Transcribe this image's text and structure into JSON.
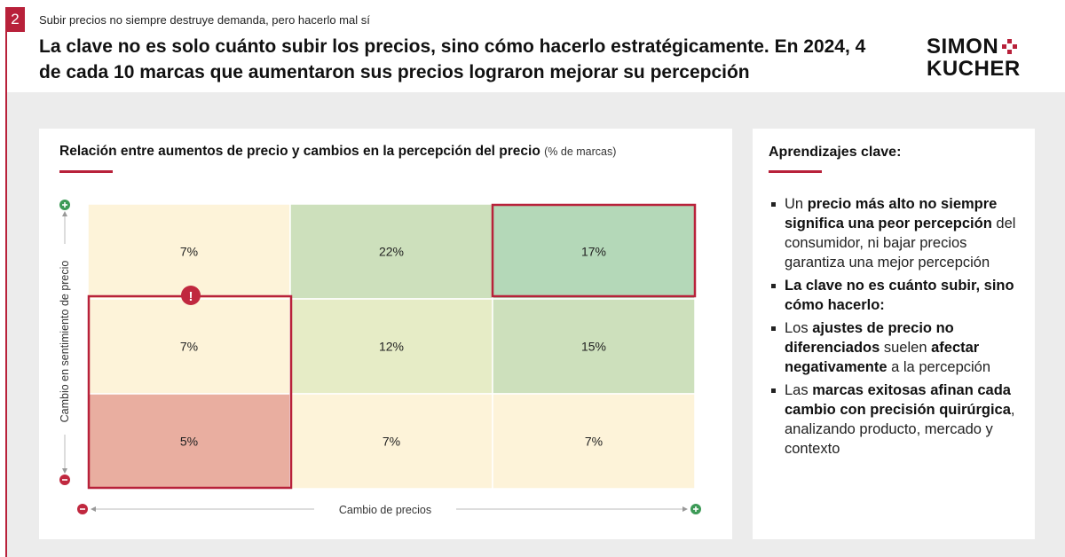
{
  "header": {
    "slide_number": "2",
    "subtitle": "Subir precios no siempre destruye demanda, pero hacerlo mal sí",
    "headline": "La clave no es solo cuánto subir los precios, sino cómo hacerlo estratégicamente. En 2024, 4 de cada 10 marcas que aumentaron sus precios lograron mejorar su percepción",
    "logo_line1": "SIMON",
    "logo_line2": "KUCHER"
  },
  "colors": {
    "accent": "#b8213a",
    "cell_light": "#fdf3d9",
    "cell_pale_green": "#e6ecc6",
    "cell_green": "#cde0bc",
    "cell_strong_green": "#b4d8b8",
    "cell_red": "#e9aea0",
    "plus_green": "#3d9a57",
    "minus_red": "#c0283f"
  },
  "chart_data": {
    "type": "heatmap",
    "title": "Relación entre aumentos de precio y cambios en la percepción del precio",
    "title_unit": "(% de marcas)",
    "xlabel": "Cambio de precios",
    "ylabel": "Cambio en sentimiento de precio",
    "x_axis_low_icon": "minus-icon",
    "x_axis_high_icon": "plus-icon",
    "y_axis_low_icon": "minus-icon",
    "y_axis_high_icon": "plus-icon",
    "warning_icon": "exclamation-icon",
    "rows": [
      {
        "cells": [
          {
            "label": "7%",
            "value": 7,
            "fill": "cell_light",
            "highlight": false
          },
          {
            "label": "22%",
            "value": 22,
            "fill": "cell_green",
            "highlight": false
          },
          {
            "label": "17%",
            "value": 17,
            "fill": "cell_strong_green",
            "highlight": true
          }
        ]
      },
      {
        "cells": [
          {
            "label": "7%",
            "value": 7,
            "fill": "cell_light",
            "highlight": true
          },
          {
            "label": "12%",
            "value": 12,
            "fill": "cell_pale_green",
            "highlight": false
          },
          {
            "label": "15%",
            "value": 15,
            "fill": "cell_green",
            "highlight": false
          }
        ]
      },
      {
        "cells": [
          {
            "label": "5%",
            "value": 5,
            "fill": "cell_red",
            "highlight": true
          },
          {
            "label": "7%",
            "value": 7,
            "fill": "cell_light",
            "highlight": false
          },
          {
            "label": "7%",
            "value": 7,
            "fill": "cell_light",
            "highlight": false
          }
        ]
      }
    ]
  },
  "learnings": {
    "title": "Aprendizajes clave:",
    "items": [
      {
        "html_parts": [
          {
            "t": "Un ",
            "b": false
          },
          {
            "t": "precio más alto no siempre significa una peor percepción",
            "b": true
          },
          {
            "t": " del consumidor, ni bajar precios garantiza una mejor percepción",
            "b": false
          }
        ]
      },
      {
        "html_parts": [
          {
            "t": "La clave no es cuánto subir, sino cómo hacerlo:",
            "b": true
          }
        ]
      },
      {
        "html_parts": [
          {
            "t": "Los ",
            "b": false
          },
          {
            "t": "ajustes de precio no diferenciados",
            "b": true
          },
          {
            "t": " suelen ",
            "b": false
          },
          {
            "t": "afectar negativamente",
            "b": true
          },
          {
            "t": " a la percepción",
            "b": false
          }
        ]
      },
      {
        "html_parts": [
          {
            "t": "Las ",
            "b": false
          },
          {
            "t": "marcas exitosas afinan cada cambio con precisión quirúrgica",
            "b": true
          },
          {
            "t": ", analizando producto, mercado y contexto",
            "b": false
          }
        ]
      }
    ]
  }
}
